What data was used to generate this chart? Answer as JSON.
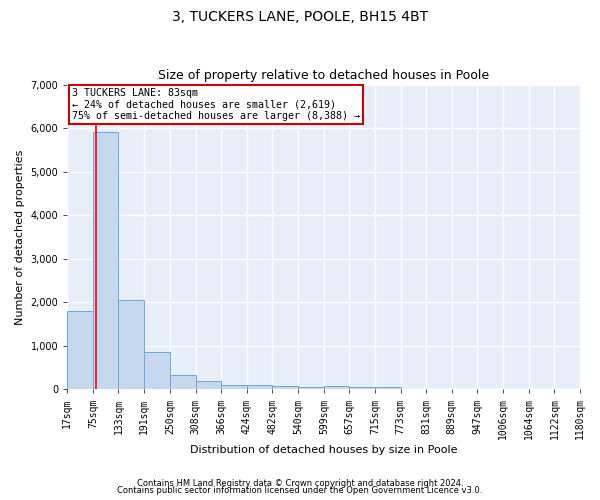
{
  "title": "3, TUCKERS LANE, POOLE, BH15 4BT",
  "subtitle": "Size of property relative to detached houses in Poole",
  "xlabel": "Distribution of detached houses by size in Poole",
  "ylabel": "Number of detached properties",
  "bin_edges": [
    17,
    75,
    133,
    191,
    250,
    308,
    366,
    424,
    482,
    540,
    599,
    657,
    715,
    773,
    831,
    889,
    947,
    1006,
    1064,
    1122,
    1180
  ],
  "bar_heights": [
    1800,
    5900,
    2050,
    850,
    330,
    200,
    100,
    90,
    70,
    50,
    70,
    50,
    50,
    0,
    0,
    0,
    0,
    0,
    0,
    0
  ],
  "bar_color": "#c5d8f0",
  "bar_edge_color": "#6aaad4",
  "bg_color": "#e8eef8",
  "grid_color": "#ffffff",
  "red_line_x": 83,
  "annotation_title": "3 TUCKERS LANE: 83sqm",
  "annotation_line2": "← 24% of detached houses are smaller (2,619)",
  "annotation_line3": "75% of semi-detached houses are larger (8,388) →",
  "annotation_box_color": "#cc0000",
  "ylim": [
    0,
    7000
  ],
  "yticks": [
    0,
    1000,
    2000,
    3000,
    4000,
    5000,
    6000,
    7000
  ],
  "footnote1": "Contains HM Land Registry data © Crown copyright and database right 2024.",
  "footnote2": "Contains public sector information licensed under the Open Government Licence v3.0."
}
